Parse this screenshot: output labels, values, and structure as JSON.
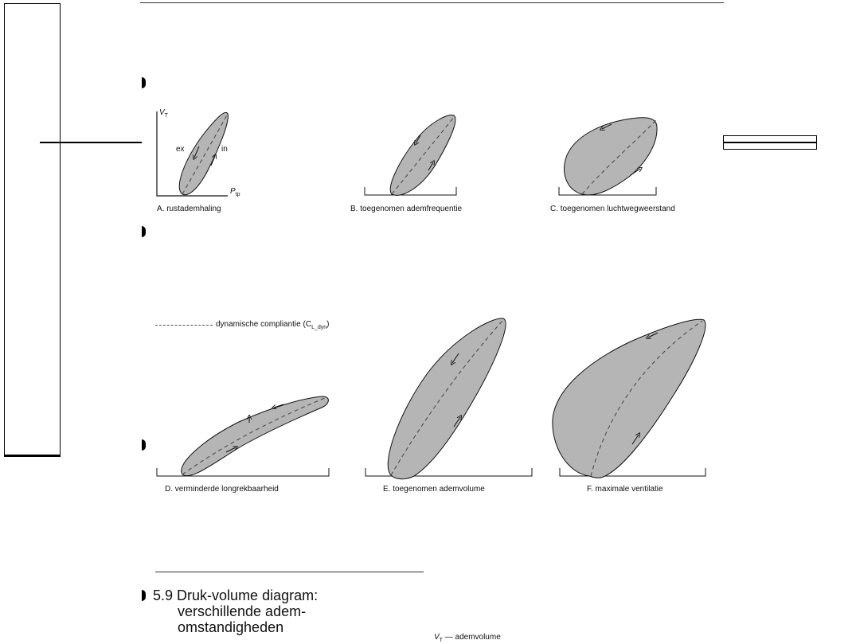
{
  "panels": {
    "a": {
      "caption": "A. rustademhaling",
      "y_axis": "V",
      "y_axis_sub": "T",
      "x_axis": "P",
      "x_axis_sub": "tp",
      "ex_label": "ex",
      "in_label": "in"
    },
    "b": {
      "caption": "B. toegenomen ademfrequentie"
    },
    "c": {
      "caption": "C. toegenomen luchtwegweerstand"
    },
    "d": {
      "caption": "D. verminderde longrekbaarheid"
    },
    "e": {
      "caption": "E. toegenomen ademvolume"
    },
    "f": {
      "caption": "F. maximale ventilatie"
    }
  },
  "legend": {
    "dynamic_compliance": "dynamische compliantie (C",
    "dynamic_compliance_sub": "L_dyn",
    "dynamic_compliance_end": ")",
    "vt_symbol": "V",
    "vt_sub": "T",
    "vt_text": "— ademvolume"
  },
  "figure_title": {
    "number": "5.9",
    "line1": "Druk-volume diagram:",
    "line2": "verschillende adem-",
    "line3": "omstandigheden"
  },
  "colors": {
    "loop_fill": "#b5b5b5",
    "line": "#111111"
  }
}
